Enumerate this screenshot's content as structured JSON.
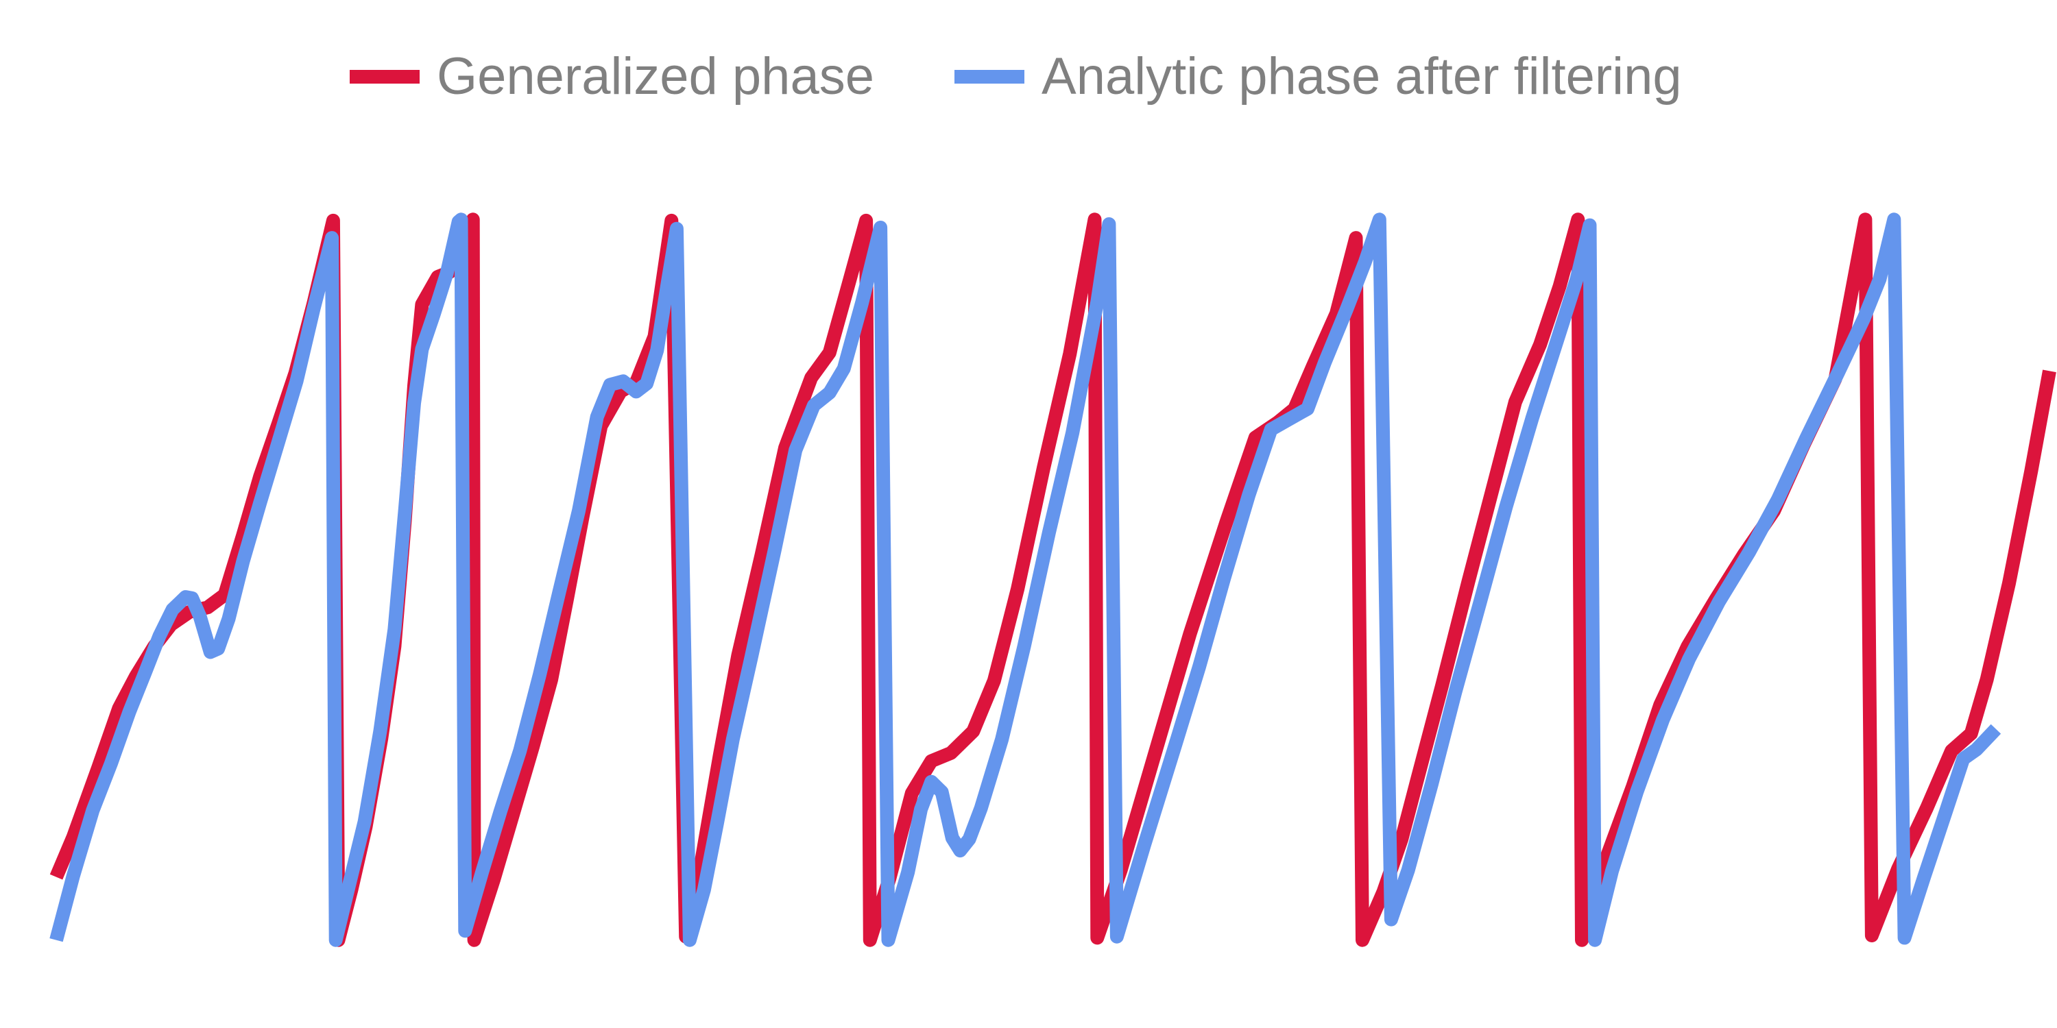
{
  "chart_data": {
    "type": "line",
    "title": "",
    "xlabel": "",
    "ylabel": "",
    "grid": false,
    "legend_position": "top-center",
    "xlim": [
      0,
      1485
    ],
    "ylim": [
      -3.14159,
      3.14159
    ],
    "series": [
      {
        "name": "Generalized phase",
        "color": "#DC143C",
        "points": [
          [
            0,
            -2.59
          ],
          [
            13,
            -2.24
          ],
          [
            32,
            -1.64
          ],
          [
            48,
            -1.12
          ],
          [
            61,
            -0.84
          ],
          [
            75,
            -0.58
          ],
          [
            88,
            -0.39
          ],
          [
            102,
            -0.28
          ],
          [
            116,
            -0.24
          ],
          [
            129,
            -0.13
          ],
          [
            143,
            0.39
          ],
          [
            156,
            0.9
          ],
          [
            170,
            1.36
          ],
          [
            183,
            1.8
          ],
          [
            197,
            2.41
          ],
          [
            212,
            3.13
          ],
          [
            216,
            -3.14
          ],
          [
            226,
            -2.7
          ],
          [
            237,
            -2.15
          ],
          [
            249,
            -1.38
          ],
          [
            259,
            -0.58
          ],
          [
            267,
            0.52
          ],
          [
            274,
            1.69
          ],
          [
            280,
            2.4
          ],
          [
            292,
            2.64
          ],
          [
            301,
            2.68
          ],
          [
            310,
            2.76
          ],
          [
            319,
            3.14
          ],
          [
            320,
            -3.14
          ],
          [
            335,
            -2.61
          ],
          [
            350,
            -2.03
          ],
          [
            365,
            -1.45
          ],
          [
            379,
            -0.87
          ],
          [
            391,
            -0.17
          ],
          [
            403,
            0.55
          ],
          [
            417,
            1.34
          ],
          [
            432,
            1.64
          ],
          [
            444,
            1.72
          ],
          [
            458,
            2.12
          ],
          [
            471,
            3.13
          ],
          [
            482,
            -3.11
          ],
          [
            492,
            -2.58
          ],
          [
            508,
            -1.53
          ],
          [
            522,
            -0.66
          ],
          [
            540,
            0.22
          ],
          [
            558,
            1.15
          ],
          [
            578,
            1.76
          ],
          [
            592,
            1.98
          ],
          [
            605,
            2.51
          ],
          [
            620,
            3.13
          ],
          [
            623,
            -3.14
          ],
          [
            638,
            -2.6
          ],
          [
            655,
            -1.86
          ],
          [
            670,
            -1.58
          ],
          [
            685,
            -1.51
          ],
          [
            702,
            -1.32
          ],
          [
            718,
            -0.88
          ],
          [
            736,
            -0.08
          ],
          [
            756,
            0.98
          ],
          [
            776,
            1.97
          ],
          [
            795,
            3.14
          ],
          [
            797,
            -3.12
          ],
          [
            815,
            -2.53
          ],
          [
            842,
            -1.48
          ],
          [
            868,
            -0.47
          ],
          [
            896,
            0.51
          ],
          [
            918,
            1.24
          ],
          [
            935,
            1.37
          ],
          [
            948,
            1.49
          ],
          [
            962,
            1.86
          ],
          [
            980,
            2.32
          ],
          [
            995,
            2.98
          ],
          [
            1000,
            -3.14
          ],
          [
            1016,
            -2.72
          ],
          [
            1030,
            -2.26
          ],
          [
            1042,
            -1.74
          ],
          [
            1061,
            -0.92
          ],
          [
            1081,
            -0.02
          ],
          [
            1101,
            0.85
          ],
          [
            1117,
            1.55
          ],
          [
            1136,
            2.05
          ],
          [
            1151,
            2.56
          ],
          [
            1165,
            3.14
          ],
          [
            1168,
            -3.14
          ],
          [
            1185,
            -2.48
          ],
          [
            1207,
            -1.8
          ],
          [
            1228,
            -1.09
          ],
          [
            1249,
            -0.58
          ],
          [
            1270,
            -0.18
          ],
          [
            1292,
            0.22
          ],
          [
            1315,
            0.6
          ],
          [
            1338,
            1.18
          ],
          [
            1362,
            1.75
          ],
          [
            1385,
            3.14
          ],
          [
            1390,
            -3.1
          ],
          [
            1410,
            -2.52
          ],
          [
            1432,
            -1.99
          ],
          [
            1451,
            -1.49
          ],
          [
            1466,
            -1.34
          ],
          [
            1478,
            -0.87
          ],
          [
            1495,
            -0.03
          ],
          [
            1512,
            0.95
          ],
          [
            1526,
            1.82
          ]
        ]
      },
      {
        "name": "Analytic phase after filtering",
        "color": "#6495ED",
        "points": [
          [
            0,
            -3.14
          ],
          [
            13,
            -2.58
          ],
          [
            28,
            -2.01
          ],
          [
            42,
            -1.6
          ],
          [
            56,
            -1.15
          ],
          [
            68,
            -0.81
          ],
          [
            79,
            -0.49
          ],
          [
            89,
            -0.26
          ],
          [
            99,
            -0.15
          ],
          [
            104,
            -0.16
          ],
          [
            110,
            -0.32
          ],
          [
            118,
            -0.63
          ],
          [
            124,
            -0.6
          ],
          [
            132,
            -0.34
          ],
          [
            143,
            0.16
          ],
          [
            156,
            0.67
          ],
          [
            170,
            1.2
          ],
          [
            184,
            1.73
          ],
          [
            197,
            2.36
          ],
          [
            211,
            2.98
          ],
          [
            214,
            -3.14
          ],
          [
            224,
            -2.67
          ],
          [
            236,
            -2.11
          ],
          [
            248,
            -1.32
          ],
          [
            259,
            -0.43
          ],
          [
            267,
            0.6
          ],
          [
            274,
            1.54
          ],
          [
            280,
            2.01
          ],
          [
            289,
            2.31
          ],
          [
            299,
            2.67
          ],
          [
            308,
            3.12
          ],
          [
            310,
            3.14
          ],
          [
            313,
            -3.06
          ],
          [
            326,
            -2.55
          ],
          [
            340,
            -2.02
          ],
          [
            355,
            -1.49
          ],
          [
            370,
            -0.83
          ],
          [
            385,
            -0.11
          ],
          [
            400,
            0.6
          ],
          [
            414,
            1.42
          ],
          [
            424,
            1.7
          ],
          [
            434,
            1.73
          ],
          [
            444,
            1.64
          ],
          [
            452,
            1.71
          ],
          [
            460,
            2.0
          ],
          [
            468,
            2.58
          ],
          [
            475,
            3.06
          ],
          [
            485,
            -3.14
          ],
          [
            496,
            -2.7
          ],
          [
            506,
            -2.12
          ],
          [
            518,
            -1.39
          ],
          [
            532,
            -0.68
          ],
          [
            550,
            0.26
          ],
          [
            566,
            1.13
          ],
          [
            580,
            1.52
          ],
          [
            592,
            1.63
          ],
          [
            603,
            1.84
          ],
          [
            617,
            2.42
          ],
          [
            631,
            3.07
          ],
          [
            637,
            -3.14
          ],
          [
            652,
            -2.55
          ],
          [
            662,
            -2.0
          ],
          [
            670,
            -1.76
          ],
          [
            678,
            -1.85
          ],
          [
            686,
            -2.25
          ],
          [
            692,
            -2.36
          ],
          [
            699,
            -2.26
          ],
          [
            708,
            -1.99
          ],
          [
            724,
            -1.39
          ],
          [
            741,
            -0.58
          ],
          [
            760,
            0.41
          ],
          [
            778,
            1.28
          ],
          [
            797,
            2.42
          ],
          [
            806,
            3.1
          ],
          [
            812,
            -3.11
          ],
          [
            833,
            -2.31
          ],
          [
            857,
            -1.43
          ],
          [
            875,
            -0.76
          ],
          [
            894,
            0.01
          ],
          [
            913,
            0.74
          ],
          [
            930,
            1.31
          ],
          [
            944,
            1.4
          ],
          [
            958,
            1.49
          ],
          [
            971,
            1.89
          ],
          [
            988,
            2.36
          ],
          [
            1002,
            2.77
          ],
          [
            1013,
            3.14
          ],
          [
            1022,
            -2.96
          ],
          [
            1035,
            -2.53
          ],
          [
            1053,
            -1.78
          ],
          [
            1071,
            -0.98
          ],
          [
            1090,
            -0.2
          ],
          [
            1110,
            0.64
          ],
          [
            1130,
            1.41
          ],
          [
            1150,
            2.12
          ],
          [
            1164,
            2.62
          ],
          [
            1174,
            3.09
          ],
          [
            1178,
            -3.14
          ],
          [
            1191,
            -2.54
          ],
          [
            1210,
            -1.85
          ],
          [
            1230,
            -1.22
          ],
          [
            1250,
            -0.69
          ],
          [
            1273,
            -0.19
          ],
          [
            1296,
            0.24
          ],
          [
            1318,
            0.7
          ],
          [
            1340,
            1.24
          ],
          [
            1364,
            1.8
          ],
          [
            1384,
            2.28
          ],
          [
            1396,
            2.62
          ],
          [
            1407,
            3.14
          ],
          [
            1415,
            -3.12
          ],
          [
            1430,
            -2.59
          ],
          [
            1447,
            -2.01
          ],
          [
            1460,
            -1.56
          ],
          [
            1470,
            -1.48
          ],
          [
            1485,
            -1.3
          ]
        ]
      }
    ]
  }
}
